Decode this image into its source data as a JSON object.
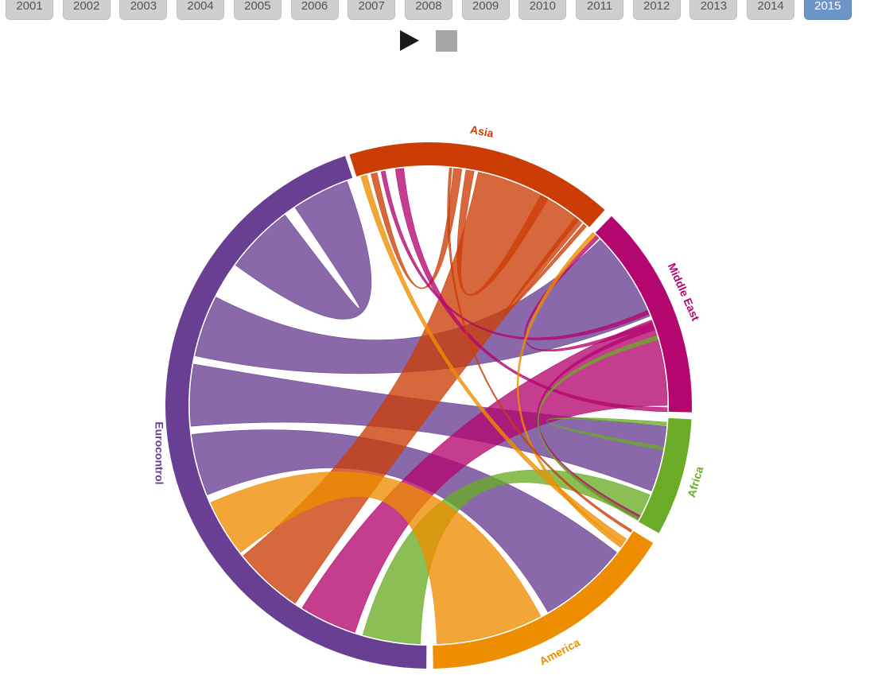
{
  "years": [
    "2001",
    "2002",
    "2003",
    "2004",
    "2005",
    "2006",
    "2007",
    "2008",
    "2009",
    "2010",
    "2011",
    "2012",
    "2013",
    "2014",
    "2015"
  ],
  "selected_year": "2015",
  "controls": {
    "play_icon": "play-icon",
    "stop_icon": "stop-icon"
  },
  "chord_diagram": {
    "groups": [
      {
        "name": "Asia",
        "color": "#cc3d06"
      },
      {
        "name": "Middle East",
        "color": "#b3066f"
      },
      {
        "name": "Africa",
        "color": "#6aac25"
      },
      {
        "name": "America",
        "color": "#ee8d00"
      },
      {
        "name": "Eurocontrol",
        "color": "#683f92"
      }
    ],
    "ribbon_color_rule": "colored by source region"
  }
}
